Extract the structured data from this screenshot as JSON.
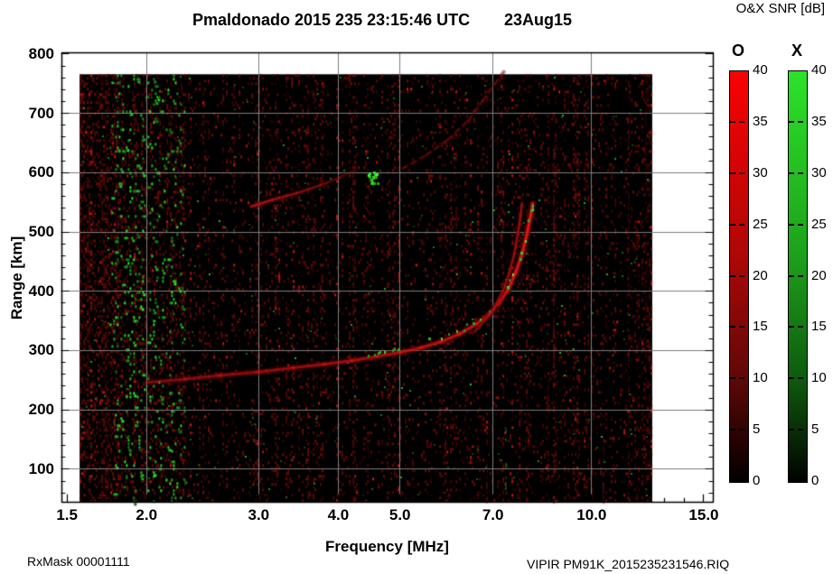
{
  "window": {
    "title_left": "Pmaldonado 2015 235 23:15:46 UTC",
    "title_right": "23Aug15"
  },
  "colorbar_title": "O&X SNR [dB]",
  "footer": {
    "left": "RxMask 00001111",
    "right": "VIPIR  PM91K_2015235231546.RIQ"
  },
  "chart_data": {
    "type": "heatmap",
    "subtype": "ionogram",
    "title": "Pmaldonado 2015 235 23:15:46 UTC   23Aug15",
    "xlabel": "Frequency [MHz]",
    "ylabel": "Range [km]",
    "x_scale": "log",
    "xlim": [
      1.47,
      15.5
    ],
    "ylim": [
      45,
      803
    ],
    "x_ticks": [
      1.5,
      2,
      3,
      4,
      5,
      7,
      10,
      15
    ],
    "x_tick_labels": [
      "1.5",
      "2.0",
      "3.0",
      "4.0",
      "5.0",
      "7.0",
      "10.0",
      "15.0"
    ],
    "x_minor_ticks": [
      1.6,
      1.7,
      1.8,
      1.9,
      2.2,
      2.4,
      2.6,
      2.8,
      3.2,
      3.4,
      3.6,
      3.8,
      4.2,
      4.4,
      4.6,
      4.8,
      5.5,
      6,
      6.5,
      7.5,
      8,
      8.5,
      9,
      9.5,
      11,
      12,
      13,
      14
    ],
    "y_ticks": [
      100,
      200,
      300,
      400,
      500,
      600,
      700,
      800
    ],
    "y_minor_step": 20,
    "grid": {
      "show": true,
      "color": "#7d7d7d",
      "x_lines": [
        2,
        3,
        4,
        5,
        7,
        10
      ],
      "y_lines": [
        100,
        200,
        300,
        400,
        500,
        600,
        700
      ]
    },
    "background_color": "#000000",
    "data_extent": {
      "mhz": [
        1.57,
        12.45
      ],
      "km": [
        45,
        766
      ]
    },
    "colorbars": [
      {
        "label": "O",
        "unit": "dB",
        "ticks": [
          0,
          5,
          10,
          15,
          20,
          25,
          30,
          35,
          40
        ],
        "gradient": [
          "#fa0202 0%",
          "#ae0707 45%",
          "#5e0808 75%",
          "#1c0101 93%",
          "#000000 100%"
        ]
      },
      {
        "label": "X",
        "unit": "dB",
        "ticks": [
          0,
          5,
          10,
          15,
          20,
          25,
          30,
          35,
          40
        ],
        "gradient": [
          "#2de228 0%",
          "#1da01b 45%",
          "#0e5a0d 75%",
          "#051b04 93%",
          "#000000 100%"
        ]
      }
    ],
    "traces": [
      {
        "name": "F-layer O-mode echo",
        "core": "#e01414",
        "halo": "#6e0606",
        "width": 3.2,
        "alpha": [
          0.45,
          1.0
        ],
        "dash": null,
        "green_speckles": true,
        "points_mhz_km": [
          [
            2.0,
            246
          ],
          [
            2.3,
            252
          ],
          [
            2.6,
            258
          ],
          [
            3.0,
            264
          ],
          [
            3.4,
            271
          ],
          [
            3.8,
            277
          ],
          [
            4.2,
            283
          ],
          [
            4.6,
            290
          ],
          [
            5.0,
            297
          ],
          [
            5.4,
            305
          ],
          [
            5.8,
            315
          ],
          [
            6.2,
            328
          ],
          [
            6.6,
            345
          ],
          [
            6.9,
            361
          ],
          [
            7.15,
            380
          ],
          [
            7.4,
            404
          ],
          [
            7.6,
            432
          ],
          [
            7.78,
            464
          ],
          [
            7.92,
            498
          ],
          [
            8.02,
            527
          ],
          [
            8.08,
            548
          ]
        ]
      },
      {
        "name": "F-layer X-mode echo",
        "core": "#b81010",
        "halo": "#500505",
        "width": 2.2,
        "alpha": [
          0.65,
          0.85
        ],
        "dash": null,
        "green_speckles": false,
        "points_mhz_km": [
          [
            6.55,
            332
          ],
          [
            6.85,
            355
          ],
          [
            7.05,
            374
          ],
          [
            7.25,
            400
          ],
          [
            7.42,
            430
          ],
          [
            7.56,
            463
          ],
          [
            7.66,
            497
          ],
          [
            7.73,
            527
          ],
          [
            7.77,
            548
          ]
        ]
      },
      {
        "name": "second stratification echo",
        "core": "#c01212",
        "halo": "#4a0404",
        "width": 2.6,
        "alpha": [
          0.95,
          0.25
        ],
        "dash": null,
        "green_speckles": false,
        "points_mhz_km": [
          [
            2.92,
            543
          ],
          [
            3.15,
            554
          ],
          [
            3.45,
            566
          ],
          [
            3.75,
            579
          ],
          [
            4.02,
            592
          ],
          [
            4.25,
            604
          ]
        ]
      },
      {
        "name": "upper oblique echo",
        "core": "#a31010",
        "halo": "#3c0303",
        "width": 2.0,
        "alpha": [
          0.5,
          0.55
        ],
        "dash": [
          6,
          5
        ],
        "green_speckles": false,
        "points_mhz_km": [
          [
            5.05,
            607
          ],
          [
            5.5,
            630
          ],
          [
            5.95,
            656
          ],
          [
            6.4,
            688
          ],
          [
            6.75,
            722
          ],
          [
            7.05,
            750
          ],
          [
            7.28,
            770
          ]
        ]
      }
    ],
    "noise": {
      "red_speckle_background": true,
      "green_band_mhz": [
        1.75,
        2.3
      ],
      "green_patch": {
        "mhz": 4.52,
        "km": 592
      },
      "rfi_stripes": [
        {
          "mhz": 8.75,
          "km": [
            45,
            640
          ],
          "color": [
            180,
            16,
            16
          ],
          "alpha": 0.55
        },
        {
          "mhz": 10.45,
          "km": [
            45,
            210
          ],
          "color": [
            150,
            16,
            16
          ],
          "alpha": 0.5
        },
        {
          "mhz": 11.45,
          "km": [
            45,
            760
          ],
          "color": [
            120,
            12,
            12
          ],
          "alpha": 0.45
        },
        {
          "mhz": 6.85,
          "km": [
            45,
            120
          ],
          "color": [
            150,
            14,
            14
          ],
          "alpha": 0.5
        },
        {
          "mhz": 12.2,
          "km": [
            45,
            766
          ],
          "color": [
            100,
            10,
            10
          ],
          "alpha": 0.4
        },
        {
          "mhz": 7.35,
          "km": [
            45,
            170
          ],
          "color": [
            30,
            170,
            30
          ],
          "alpha": 0.5
        }
      ]
    }
  }
}
